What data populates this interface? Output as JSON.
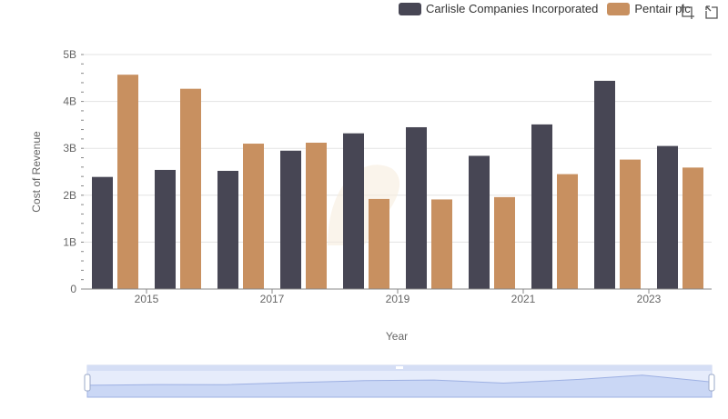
{
  "legend": {
    "items": [
      {
        "name": "Carlisle Companies Incorporated",
        "color": "#474654"
      },
      {
        "name": "Pentair plc",
        "color": "#c89060"
      }
    ]
  },
  "toolbar": {
    "icons": [
      "crop-icon",
      "restore-icon"
    ]
  },
  "chart_data": {
    "type": "bar",
    "xlabel": "Year",
    "ylabel": "Cost of Revenue",
    "categories": [
      "2014",
      "2015",
      "2016",
      "2017",
      "2018",
      "2019",
      "2020",
      "2021",
      "2022",
      "2023"
    ],
    "x_tick_labels": [
      "2015",
      "2017",
      "2019",
      "2021",
      "2023"
    ],
    "y_tick_labels": [
      "0",
      "1B",
      "2B",
      "3B",
      "4B",
      "5B"
    ],
    "ylim": [
      0,
      5000000000
    ],
    "grid": true,
    "legend_position": "top-right",
    "series": [
      {
        "name": "Carlisle Companies Incorporated",
        "color": "#474654",
        "values": [
          2390000000,
          2540000000,
          2520000000,
          2950000000,
          3320000000,
          3450000000,
          2840000000,
          3510000000,
          4440000000,
          3050000000
        ]
      },
      {
        "name": "Pentair plc",
        "color": "#c89060",
        "values": [
          4570000000,
          4270000000,
          3100000000,
          3120000000,
          1920000000,
          1910000000,
          1960000000,
          2450000000,
          2760000000,
          2590000000
        ]
      }
    ]
  }
}
